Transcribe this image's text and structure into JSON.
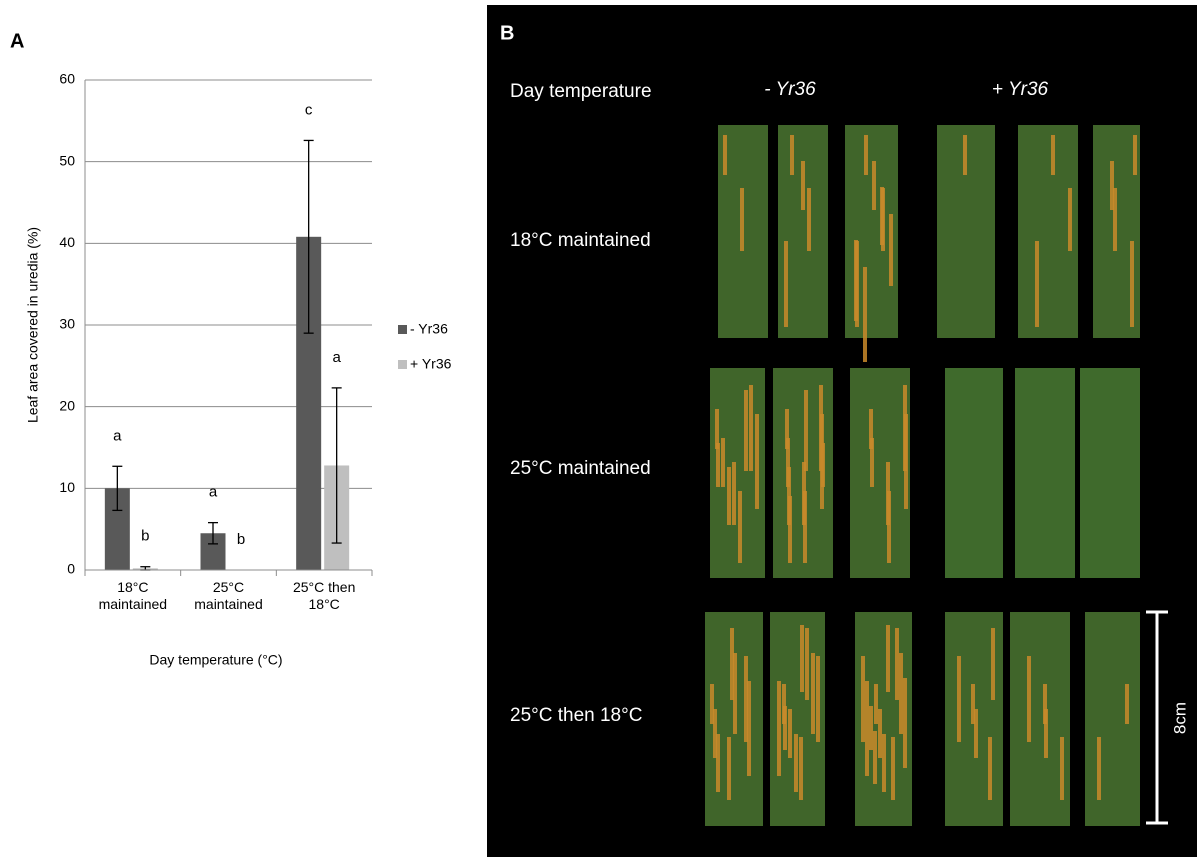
{
  "panel_a_label": "A",
  "chart_data": {
    "type": "bar",
    "ylabel": "Leaf area covered in uredia (%)",
    "xlabel": "Day temperature (°C)",
    "categories": [
      "18°C maintained",
      "25°C maintained",
      "25°C then 18°C"
    ],
    "series": [
      {
        "name": "- Yr36",
        "color": "#595959",
        "values": [
          10,
          4.5,
          40.8
        ],
        "errors": [
          2.7,
          1.3,
          11.8
        ],
        "letters": [
          "a",
          "a",
          "c"
        ]
      },
      {
        "name": "+ Yr36",
        "color": "#bfbfbf",
        "values": [
          0.2,
          0,
          12.8
        ],
        "errors": [
          0.2,
          null,
          9.5
        ],
        "letters": [
          "b",
          "b",
          "a"
        ]
      }
    ],
    "ylim": [
      0,
      60
    ],
    "yticks": [
      0,
      10,
      20,
      30,
      40,
      50,
      60
    ],
    "grid": true,
    "legend": "right"
  },
  "panel_b": {
    "label": "B",
    "column_header": "Day temperature",
    "groups": [
      "- Yr36",
      "+ Yr36"
    ],
    "rows": [
      "18°C maintained",
      "25°C maintained",
      "25°C then 18°C"
    ],
    "scale_bar": "8cm"
  }
}
